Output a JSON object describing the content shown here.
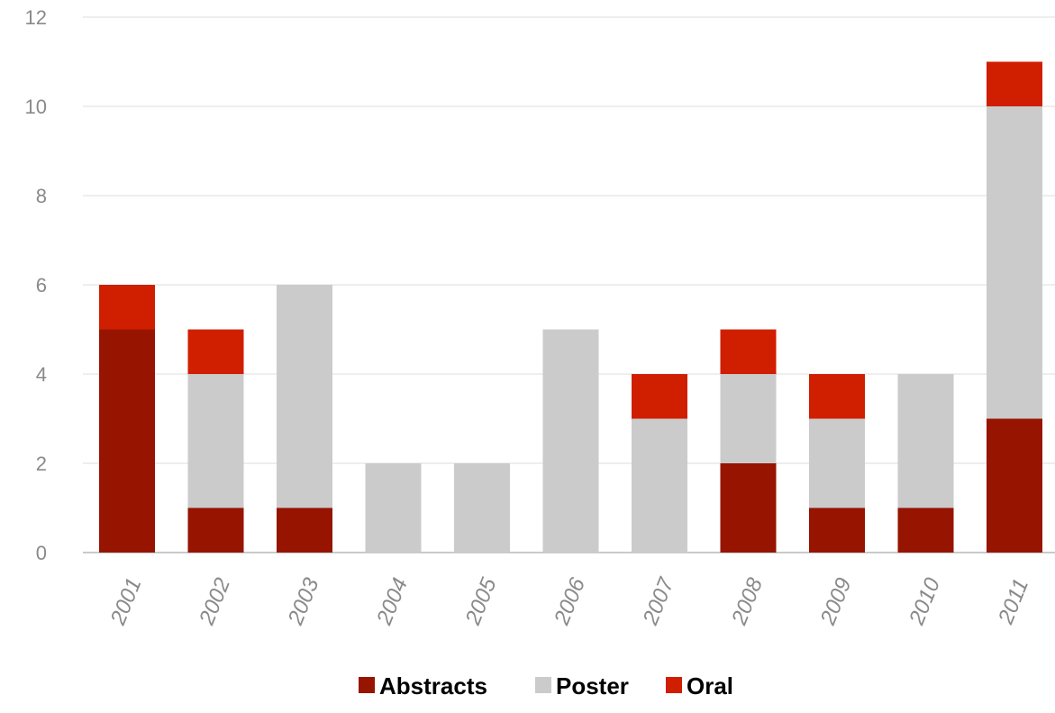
{
  "chart_data": {
    "type": "bar",
    "stacked": true,
    "categories": [
      "2001",
      "2002",
      "2003",
      "2004",
      "2005",
      "2006",
      "2007",
      "2008",
      "2009",
      "2010",
      "2011"
    ],
    "series": [
      {
        "name": "Abstracts",
        "color": "#961400",
        "values": [
          5,
          1,
          1,
          0,
          0,
          0,
          0,
          2,
          1,
          1,
          3
        ]
      },
      {
        "name": "Poster",
        "color": "#cbcbcb",
        "values": [
          0,
          3,
          5,
          2,
          2,
          5,
          3,
          2,
          2,
          3,
          7
        ]
      },
      {
        "name": "Oral",
        "color": "#d01e00",
        "values": [
          1,
          1,
          0,
          0,
          0,
          0,
          1,
          1,
          1,
          0,
          1
        ]
      }
    ],
    "ylim": [
      0,
      12
    ],
    "yticks": [
      "0",
      "2",
      "4",
      "6",
      "8",
      "10",
      "12"
    ],
    "grid": true,
    "legend": "bottom"
  }
}
